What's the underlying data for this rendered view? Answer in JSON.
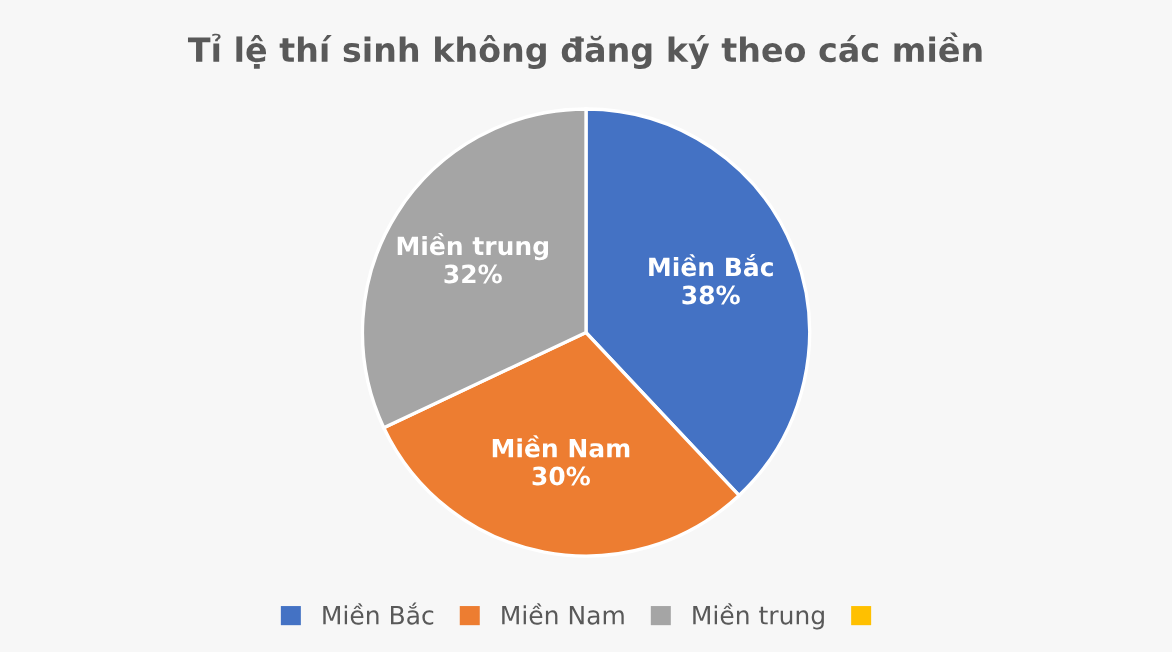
{
  "chart_data": {
    "type": "pie",
    "title": "Tỉ lệ thí sinh không đăng ký theo các miền",
    "categories": [
      "Miền Bắc",
      "Miền Nam",
      "Miền trung",
      null
    ],
    "values": [
      38,
      30,
      32,
      0
    ],
    "colors": [
      "#4472c4",
      "#ed7d31",
      "#a5a5a5",
      "#ffc000"
    ],
    "value_labels": [
      "38%",
      "30%",
      "32%",
      null
    ],
    "legend": "bottom"
  }
}
